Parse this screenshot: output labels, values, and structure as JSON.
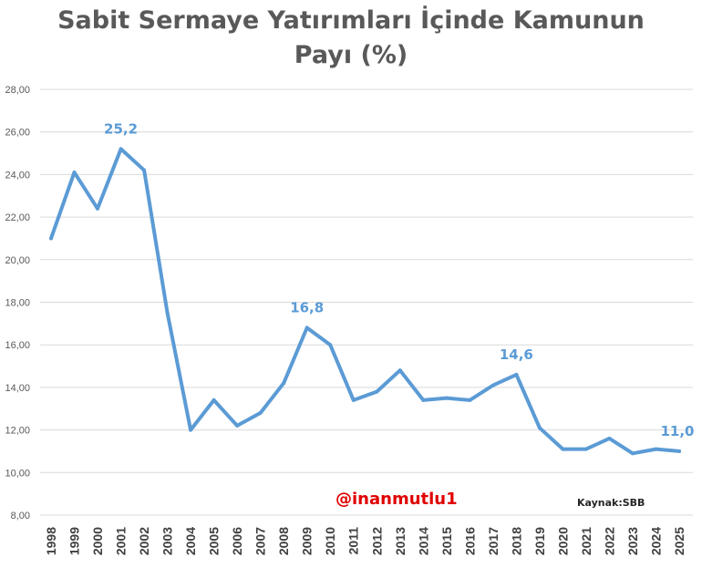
{
  "chart_data": {
    "type": "line",
    "title_lines": [
      "Sabit Sermaye Yatırımları İçinde Kamunun",
      "Payı (%)"
    ],
    "x": [
      "1998",
      "1999",
      "2000",
      "2001",
      "2002",
      "2003",
      "2004",
      "2005",
      "2006",
      "2007",
      "2008",
      "2009",
      "2010",
      "2011",
      "2012",
      "2013",
      "2014",
      "2015",
      "2016",
      "2017",
      "2018",
      "2019",
      "2020",
      "2021",
      "2022",
      "2023",
      "2024",
      "2025"
    ],
    "series": [
      {
        "values": [
          21.0,
          24.1,
          22.4,
          25.2,
          24.2,
          17.5,
          12.0,
          13.4,
          12.2,
          12.8,
          14.2,
          16.8,
          16.0,
          13.4,
          13.8,
          14.8,
          13.4,
          13.5,
          13.4,
          14.1,
          14.6,
          12.1,
          11.1,
          11.1,
          11.6,
          10.9,
          11.1,
          11.0
        ],
        "color": "#5b9bd5"
      }
    ],
    "data_labels": [
      {
        "x": "2001",
        "text": "25,2"
      },
      {
        "x": "2009",
        "text": "16,8"
      },
      {
        "x": "2018",
        "text": "14,6"
      },
      {
        "x": "2025",
        "text": "11,0"
      }
    ],
    "yticks": [
      "8,00",
      "10,00",
      "12,00",
      "14,00",
      "16,00",
      "18,00",
      "20,00",
      "22,00",
      "24,00",
      "26,00",
      "28,00"
    ],
    "ylim": [
      8,
      28
    ],
    "grid": true,
    "legend": "none",
    "label_color": "#5b9bd5"
  },
  "watermark": "@inanmutlu1",
  "source": "Kaynak:SBB"
}
